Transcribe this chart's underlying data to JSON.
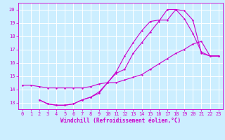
{
  "bg_color": "#cceeff",
  "grid_color": "#ffffff",
  "line_color": "#cc00cc",
  "xlim": [
    -0.5,
    23.5
  ],
  "ylim": [
    12.5,
    20.5
  ],
  "yticks": [
    13,
    14,
    15,
    16,
    17,
    18,
    19,
    20
  ],
  "xticks": [
    0,
    1,
    2,
    3,
    4,
    5,
    6,
    7,
    8,
    9,
    10,
    11,
    12,
    13,
    14,
    15,
    16,
    17,
    18,
    19,
    20,
    21,
    22,
    23
  ],
  "line1": {
    "x": [
      0,
      1,
      2,
      3,
      4,
      5,
      6,
      7,
      8,
      9,
      10,
      11,
      12,
      13,
      14,
      15,
      16,
      17,
      18,
      19,
      20,
      21,
      22,
      23
    ],
    "y": [
      14.3,
      14.3,
      14.2,
      14.1,
      14.1,
      14.1,
      14.1,
      14.1,
      14.2,
      14.4,
      14.5,
      14.5,
      14.7,
      14.9,
      15.1,
      15.5,
      15.9,
      16.3,
      16.7,
      17.0,
      17.4,
      17.6,
      16.5,
      16.5
    ]
  },
  "line2": {
    "x": [
      2,
      3,
      4,
      5,
      6,
      7,
      8,
      9,
      10,
      11,
      12,
      13,
      14,
      15,
      16,
      17,
      18,
      19,
      20,
      21,
      22,
      23
    ],
    "y": [
      13.2,
      12.9,
      12.8,
      12.8,
      12.9,
      13.2,
      13.4,
      13.8,
      14.5,
      15.3,
      16.5,
      17.5,
      18.4,
      19.1,
      19.2,
      19.2,
      20.0,
      19.9,
      19.2,
      16.7,
      16.5,
      16.5
    ]
  },
  "line3": {
    "x": [
      2,
      3,
      4,
      5,
      6,
      7,
      8,
      9,
      10,
      11,
      12,
      13,
      14,
      15,
      16,
      17,
      18,
      19,
      20,
      21,
      22,
      23
    ],
    "y": [
      13.2,
      12.9,
      12.8,
      12.8,
      12.9,
      13.2,
      13.4,
      13.7,
      14.5,
      15.2,
      15.5,
      16.7,
      17.5,
      18.3,
      19.1,
      20.0,
      20.0,
      19.3,
      18.2,
      16.8,
      16.5,
      16.5
    ]
  },
  "xlabel": "Windchill (Refroidissement éolien,°C)",
  "xlabel_fontsize": 5.5,
  "tick_fontsize": 5,
  "marker_size": 2.0,
  "line_width": 0.8
}
